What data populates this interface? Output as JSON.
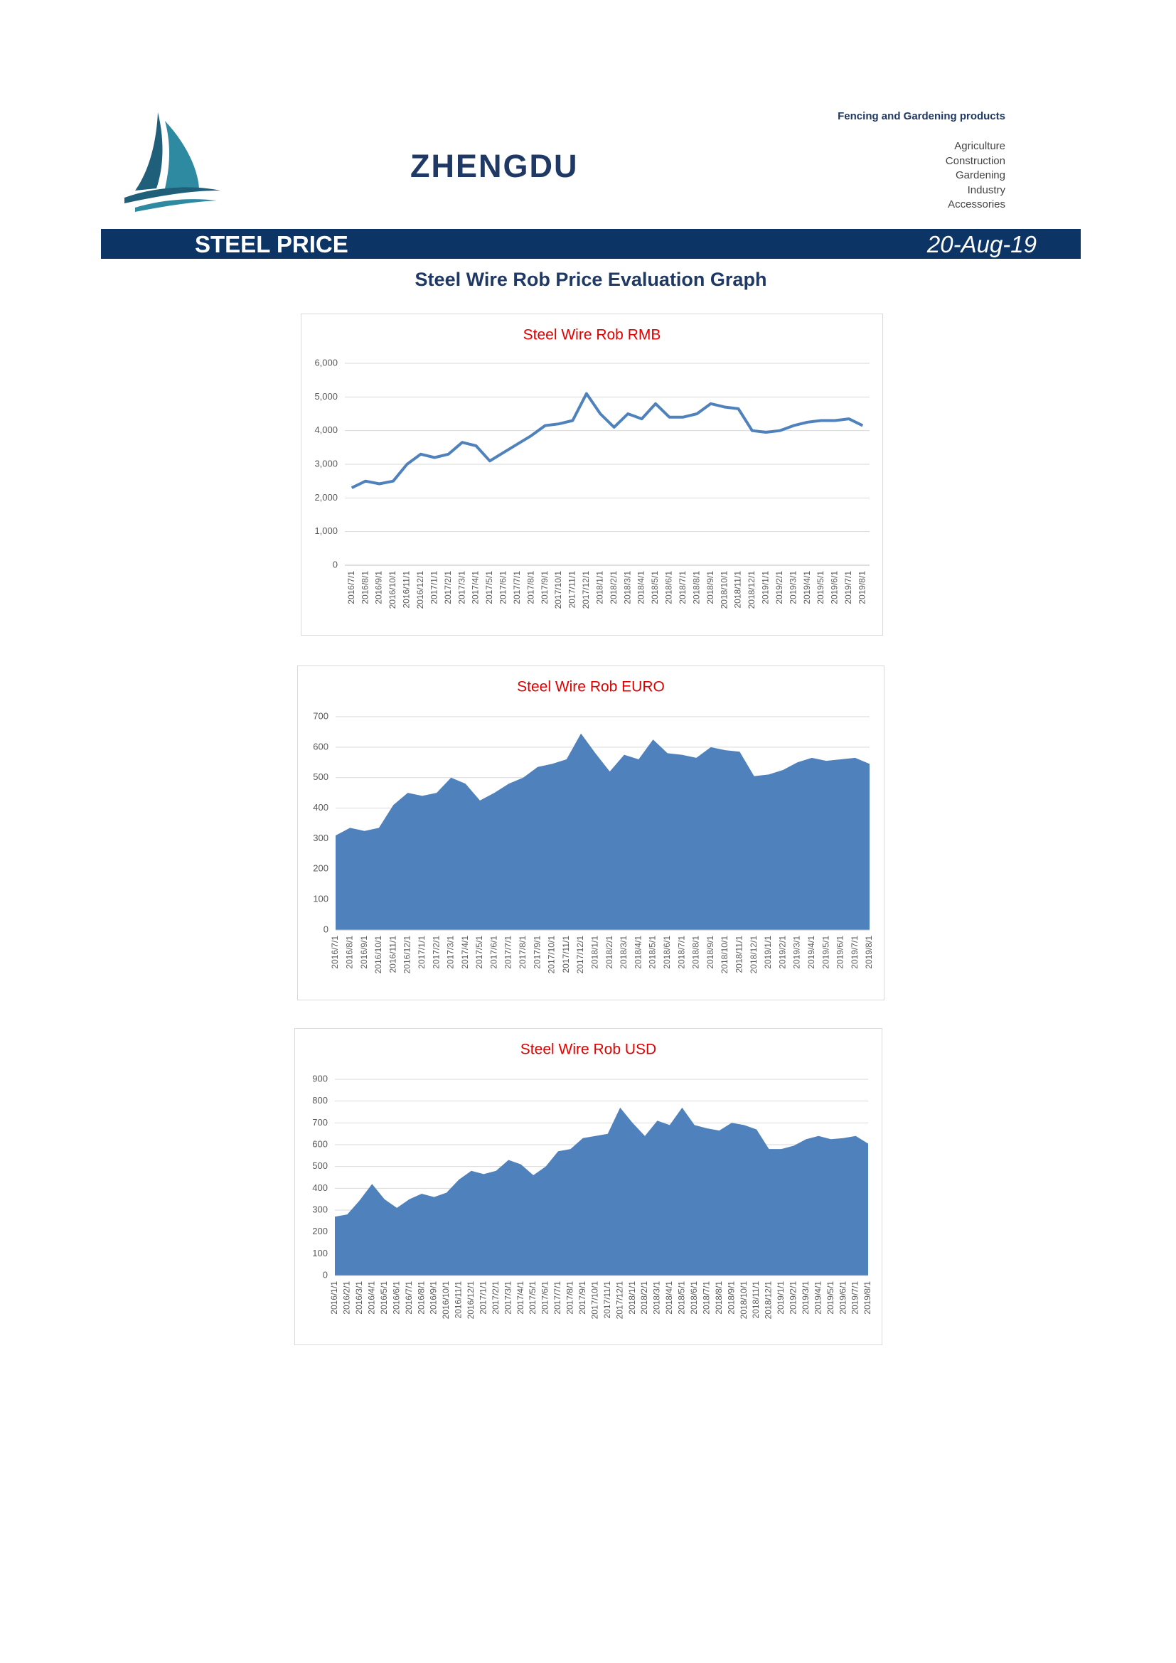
{
  "header": {
    "brand": "ZHENGDU",
    "tagline": "Fencing and Gardening products",
    "sectors": [
      "Agriculture",
      "Construction",
      "Gardening",
      "Industry",
      "Accessories"
    ]
  },
  "banner": {
    "title": "STEEL PRICE",
    "date": "20-Aug-19"
  },
  "subtitle": "Steel Wire Rob Price Evaluation Graph",
  "chart_data": [
    {
      "type": "line",
      "title": "Steel Wire Rob RMB",
      "title_color": "#e00000",
      "color": "#4f81bd",
      "grid": true,
      "categories": [
        "2016/7/1",
        "2016/8/1",
        "2016/9/1",
        "2016/10/1",
        "2016/11/1",
        "2016/12/1",
        "2017/1/1",
        "2017/2/1",
        "2017/3/1",
        "2017/4/1",
        "2017/5/1",
        "2017/6/1",
        "2017/7/1",
        "2017/8/1",
        "2017/9/1",
        "2017/10/1",
        "2017/11/1",
        "2017/12/1",
        "2018/1/1",
        "2018/2/1",
        "2018/3/1",
        "2018/4/1",
        "2018/5/1",
        "2018/6/1",
        "2018/7/1",
        "2018/8/1",
        "2018/9/1",
        "2018/10/1",
        "2018/11/1",
        "2018/12/1",
        "2019/1/1",
        "2019/2/1",
        "2019/3/1",
        "2019/4/1",
        "2019/5/1",
        "2019/6/1",
        "2019/7/1",
        "2019/8/1"
      ],
      "values": [
        2300,
        2500,
        2420,
        2500,
        3000,
        3300,
        3200,
        3300,
        3650,
        3550,
        3100,
        3350,
        3600,
        3850,
        4150,
        4200,
        4300,
        5100,
        4500,
        4100,
        4500,
        4350,
        4800,
        4400,
        4400,
        4500,
        4800,
        4700,
        4650,
        4000,
        3950,
        4000,
        4150,
        4250,
        4300,
        4300,
        4350,
        4150
      ],
      "ylim": [
        0,
        6000
      ],
      "yticks": [
        0,
        {
          "value": 1000,
          "label": "1,000"
        },
        {
          "value": 2000,
          "label": "2,000"
        },
        {
          "value": 3000,
          "label": "3,000"
        },
        {
          "value": 4000,
          "label": "4,000"
        },
        {
          "value": 5000,
          "label": "5,000"
        },
        {
          "value": 6000,
          "label": "6,000"
        }
      ]
    },
    {
      "type": "area",
      "title": "Steel Wire Rob EURO",
      "title_color": "#e00000",
      "color": "#4f81bd",
      "grid": true,
      "categories": [
        "2016/7/1",
        "2016/8/1",
        "2016/9/1",
        "2016/10/1",
        "2016/11/1",
        "2016/12/1",
        "2017/1/1",
        "2017/2/1",
        "2017/3/1",
        "2017/4/1",
        "2017/5/1",
        "2017/6/1",
        "2017/7/1",
        "2017/8/1",
        "2017/9/1",
        "2017/10/1",
        "2017/11/1",
        "2017/12/1",
        "2018/1/1",
        "2018/2/1",
        "2018/3/1",
        "2018/4/1",
        "2018/5/1",
        "2018/6/1",
        "2018/7/1",
        "2018/8/1",
        "2018/9/1",
        "2018/10/1",
        "2018/11/1",
        "2018/12/1",
        "2019/1/1",
        "2019/2/1",
        "2019/3/1",
        "2019/4/1",
        "2019/5/1",
        "2019/6/1",
        "2019/7/1",
        "2019/8/1"
      ],
      "values": [
        310,
        335,
        325,
        335,
        410,
        450,
        440,
        450,
        500,
        480,
        425,
        450,
        480,
        500,
        535,
        545,
        560,
        645,
        580,
        520,
        575,
        560,
        625,
        580,
        575,
        565,
        600,
        590,
        585,
        505,
        510,
        525,
        550,
        565,
        555,
        560,
        565,
        545
      ],
      "ylim": [
        0,
        700
      ],
      "yticks": [
        0,
        100,
        200,
        300,
        400,
        500,
        600,
        700
      ]
    },
    {
      "type": "area",
      "title": "Steel Wire Rob USD",
      "title_color": "#e00000",
      "color": "#4f81bd",
      "grid": true,
      "categories": [
        "2016/1/1",
        "2016/2/1",
        "2016/3/1",
        "2016/4/1",
        "2016/5/1",
        "2016/6/1",
        "2016/7/1",
        "2016/8/1",
        "2016/9/1",
        "2016/10/1",
        "2016/11/1",
        "2016/12/1",
        "2017/1/1",
        "2017/2/1",
        "2017/3/1",
        "2017/4/1",
        "2017/5/1",
        "2017/6/1",
        "2017/7/1",
        "2017/8/1",
        "2017/9/1",
        "2017/10/1",
        "2017/11/1",
        "2017/12/1",
        "2018/1/1",
        "2018/2/1",
        "2018/3/1",
        "2018/4/1",
        "2018/5/1",
        "2018/6/1",
        "2018/7/1",
        "2018/8/1",
        "2018/9/1",
        "2018/10/1",
        "2018/11/1",
        "2018/12/1",
        "2019/1/1",
        "2019/2/1",
        "2019/3/1",
        "2019/4/1",
        "2019/5/1",
        "2019/6/1",
        "2019/7/1",
        "2019/8/1"
      ],
      "values": [
        270,
        280,
        345,
        420,
        350,
        310,
        350,
        375,
        360,
        380,
        440,
        480,
        465,
        480,
        530,
        510,
        460,
        500,
        570,
        580,
        630,
        640,
        650,
        770,
        700,
        640,
        710,
        690,
        770,
        690,
        675,
        665,
        700,
        690,
        670,
        580,
        580,
        595,
        625,
        640,
        625,
        630,
        640,
        605
      ],
      "ylim": [
        0,
        900
      ],
      "yticks": [
        0,
        100,
        200,
        300,
        400,
        500,
        600,
        700,
        800,
        900
      ]
    }
  ]
}
